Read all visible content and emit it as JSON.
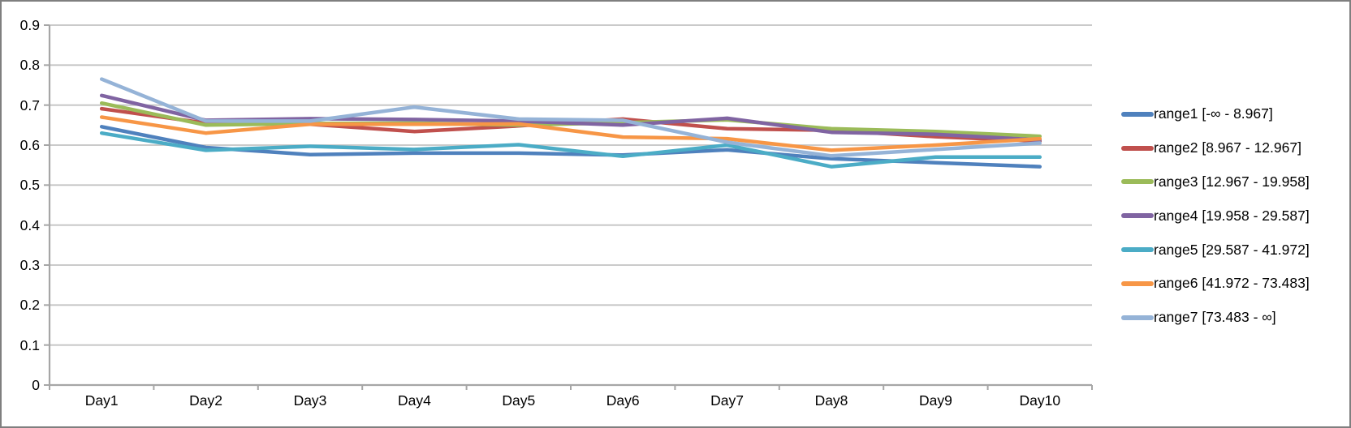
{
  "chart_data": {
    "type": "line",
    "title": "",
    "xlabel": "",
    "ylabel": "",
    "categories": [
      "Day1",
      "Day2",
      "Day3",
      "Day4",
      "Day5",
      "Day6",
      "Day7",
      "Day8",
      "Day9",
      "Day10"
    ],
    "yticks": [
      "0",
      "0.1",
      "0.2",
      "0.3",
      "0.4",
      "0.5",
      "0.6",
      "0.7",
      "0.8",
      "0.9"
    ],
    "ylim": [
      0,
      0.9
    ],
    "grid": "horizontal",
    "legend_position": "right",
    "series": [
      {
        "name": "range1 [-∞ - 8.967]",
        "color": "#4F81BD",
        "values": [
          0.646,
          0.594,
          0.576,
          0.58,
          0.58,
          0.575,
          0.588,
          0.566,
          0.556,
          0.546
        ]
      },
      {
        "name": "range2 [8.967 - 12.967]",
        "color": "#C0504D",
        "values": [
          0.691,
          0.655,
          0.652,
          0.634,
          0.648,
          0.665,
          0.641,
          0.637,
          0.621,
          0.61
        ]
      },
      {
        "name": "range3 [12.967 - 19.958]",
        "color": "#9BBB59",
        "values": [
          0.705,
          0.65,
          0.654,
          0.655,
          0.65,
          0.656,
          0.663,
          0.641,
          0.634,
          0.622
        ]
      },
      {
        "name": "range4 [19.958 - 29.587]",
        "color": "#8064A2",
        "values": [
          0.724,
          0.662,
          0.666,
          0.664,
          0.66,
          0.65,
          0.667,
          0.632,
          0.627,
          0.613
        ]
      },
      {
        "name": "range5 [29.587 - 41.972]",
        "color": "#4BACC6",
        "values": [
          0.63,
          0.587,
          0.597,
          0.589,
          0.601,
          0.572,
          0.6,
          0.546,
          0.57,
          0.57
        ]
      },
      {
        "name": "range6 [41.972 - 73.483]",
        "color": "#F79646",
        "values": [
          0.67,
          0.63,
          0.652,
          0.652,
          0.653,
          0.62,
          0.616,
          0.587,
          0.6,
          0.616
        ]
      },
      {
        "name": "range7 [73.483 - ∞]",
        "color": "#95B3D7",
        "values": [
          0.765,
          0.66,
          0.66,
          0.695,
          0.665,
          0.662,
          0.607,
          0.573,
          0.589,
          0.605
        ]
      }
    ]
  },
  "colors": {
    "axis": "#A6A6A6",
    "gridline": "#C3C3C3",
    "frame_border": "#7F7F7F",
    "text": "#000000",
    "background": "#FFFFFF"
  }
}
